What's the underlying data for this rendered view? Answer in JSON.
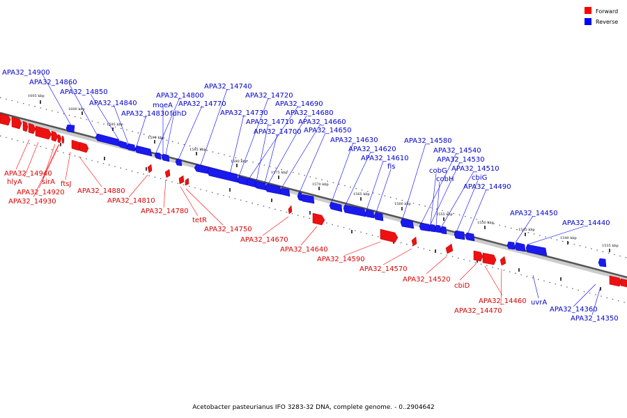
{
  "legend": {
    "forward_label": "Forward",
    "reverse_label": "Reverse",
    "forward_color": "#ff0000",
    "reverse_color": "#0000ff"
  },
  "caption": "Acetobacter pasteurianus IFO 3283-32 DNA, complete genome. - 0..2904642",
  "ticks": [
    "1605 kbp",
    "1600 kbp",
    "1595 kbp",
    "1590 kbp",
    "1585 kbp",
    "1580 kbp",
    "1575 kbp",
    "1570 kbp",
    "1565 kbp",
    "1560 kbp",
    "1555 kbp",
    "1550 kbp",
    "1545 kbp",
    "1540 kbp",
    "1535 kbp"
  ],
  "reverse_labels": [
    "APA32_14900",
    "APA32_14860",
    "APA32_14850",
    "APA32_14840",
    "APA32_14830",
    "APA32_14800",
    "moeA",
    "fdhD",
    "APA32_14770",
    "APA32_14740",
    "APA32_14720",
    "APA32_14730",
    "APA32_14690",
    "APA32_14710",
    "APA32_14680",
    "APA32_14660",
    "APA32_14700",
    "APA32_14650",
    "APA32_14630",
    "APA32_14620",
    "APA32_14610",
    "fis",
    "APA32_14580",
    "APA32_14540",
    "APA32_14530",
    "cobG",
    "APA32_14510",
    "cobH",
    "cbiG",
    "APA32_14490",
    "APA32_14450",
    "APA32_14440",
    "uvrA",
    "APA32_14360",
    "APA32_14350"
  ],
  "forward_labels": [
    "APA32_14940",
    "hlyA",
    "sirA",
    "APA32_14920",
    "ftsJ",
    "APA32_14930",
    "APA32_14880",
    "APA32_14810",
    "APA32_14780",
    "tetR",
    "APA32_14750",
    "APA32_14670",
    "APA32_14640",
    "APA32_14590",
    "APA32_14570",
    "APA32_14520",
    "cbiD",
    "APA32_14460",
    "APA32_14470"
  ]
}
